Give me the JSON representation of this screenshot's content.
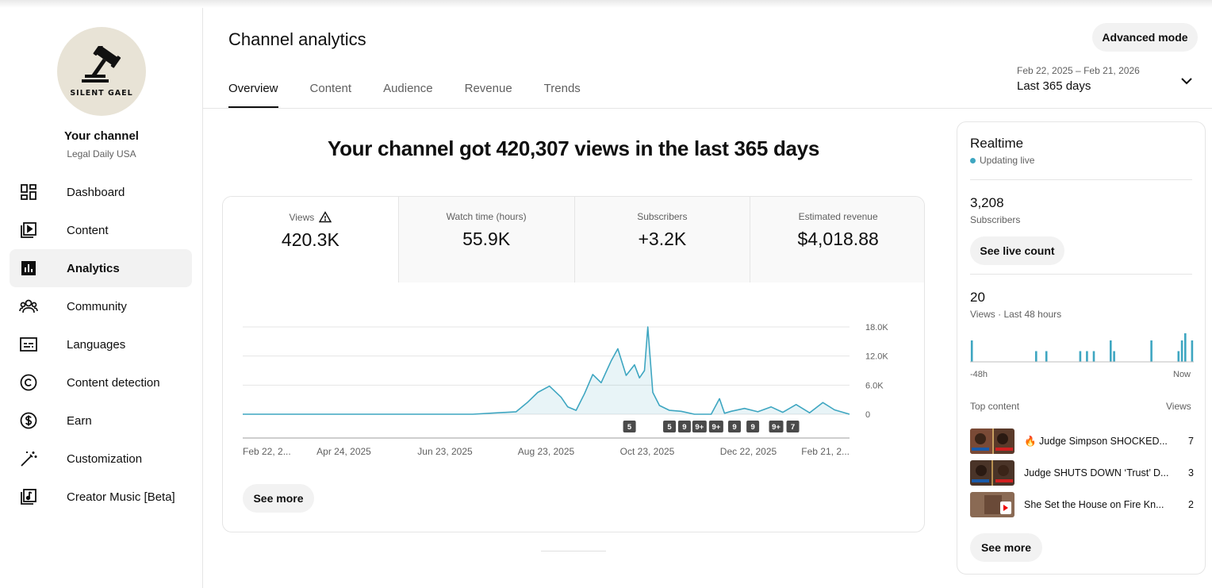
{
  "sidebar": {
    "channel_logo_text": "SILENT GAEL",
    "channel_title": "Your channel",
    "channel_name": "Legal Daily USA",
    "items": [
      {
        "label": "Dashboard",
        "icon": "dashboard-icon"
      },
      {
        "label": "Content",
        "icon": "content-icon"
      },
      {
        "label": "Analytics",
        "icon": "analytics-icon",
        "active": true
      },
      {
        "label": "Community",
        "icon": "community-icon"
      },
      {
        "label": "Languages",
        "icon": "languages-icon"
      },
      {
        "label": "Content detection",
        "icon": "copyright-icon"
      },
      {
        "label": "Earn",
        "icon": "earn-icon"
      },
      {
        "label": "Customization",
        "icon": "magic-wand-icon"
      },
      {
        "label": "Creator Music [Beta]",
        "icon": "music-icon"
      }
    ]
  },
  "header": {
    "title": "Channel analytics",
    "advanced_mode": "Advanced mode",
    "tabs": [
      "Overview",
      "Content",
      "Audience",
      "Revenue",
      "Trends"
    ],
    "active_tab": "Overview",
    "date_range": "Feb 22, 2025 – Feb 21, 2026",
    "date_preset": "Last 365 days"
  },
  "headline": "Your channel got 420,307 views in the last 365 days",
  "metrics": [
    {
      "label": "Views",
      "value": "420.3K",
      "warning": true
    },
    {
      "label": "Watch time (hours)",
      "value": "55.9K"
    },
    {
      "label": "Subscribers",
      "value": "+3.2K"
    },
    {
      "label": "Estimated revenue",
      "value": "$4,018.88"
    }
  ],
  "chart_data": {
    "type": "area",
    "y_ticks": [
      "18.0K",
      "12.0K",
      "6.0K",
      "0"
    ],
    "ylim": [
      0,
      18000
    ],
    "x_ticks": [
      "Feb 22, 2...",
      "Apr 24, 2025",
      "Jun 23, 2025",
      "Aug 23, 2025",
      "Oct 23, 2025",
      "Dec 22, 2025",
      "Feb 21, 2..."
    ],
    "x": [
      "2025-02-22",
      "2025-07-10",
      "2025-08-05",
      "2025-08-12",
      "2025-08-18",
      "2025-08-25",
      "2025-09-01",
      "2025-09-05",
      "2025-09-10",
      "2025-09-15",
      "2025-09-20",
      "2025-09-25",
      "2025-10-01",
      "2025-10-05",
      "2025-10-10",
      "2025-10-15",
      "2025-10-18",
      "2025-10-21",
      "2025-10-23",
      "2025-10-26",
      "2025-10-30",
      "2025-11-05",
      "2025-11-12",
      "2025-11-20",
      "2025-11-30",
      "2025-12-05",
      "2025-12-08",
      "2025-12-12",
      "2025-12-20",
      "2025-12-28",
      "2026-01-05",
      "2026-01-12",
      "2026-01-20",
      "2026-01-28",
      "2026-02-05",
      "2026-02-12",
      "2026-02-21"
    ],
    "values": [
      0,
      0,
      500,
      2500,
      4500,
      5800,
      3500,
      1500,
      800,
      4200,
      8200,
      6500,
      11000,
      13500,
      8000,
      10200,
      7500,
      9000,
      18000,
      4500,
      1800,
      800,
      600,
      0,
      0,
      3200,
      200,
      600,
      1200,
      500,
      1500,
      400,
      2000,
      300,
      2400,
      900,
      0
    ],
    "annotations": [
      {
        "x": "2025-10-12",
        "label": "5"
      },
      {
        "x": "2025-11-05",
        "label": "5"
      },
      {
        "x": "2025-11-14",
        "label": "9"
      },
      {
        "x": "2025-11-23",
        "label": "9+"
      },
      {
        "x": "2025-12-03",
        "label": "9+"
      },
      {
        "x": "2025-12-14",
        "label": "9"
      },
      {
        "x": "2025-12-25",
        "label": "9"
      },
      {
        "x": "2026-01-08",
        "label": "9+"
      },
      {
        "x": "2026-01-18",
        "label": "7"
      }
    ],
    "color": "#3ea6c1"
  },
  "see_more": "See more",
  "realtime": {
    "title": "Realtime",
    "status": "Updating live",
    "subscribers_value": "3,208",
    "subscribers_label": "Subscribers",
    "live_count_button": "See live count",
    "views_value": "20",
    "views_label": "Views · Last 48 hours",
    "bars": [
      3,
      0,
      0,
      0,
      0,
      0,
      0,
      0,
      0,
      0,
      0,
      0,
      0,
      0,
      0,
      0,
      0,
      0,
      0,
      1.5,
      0,
      0,
      1.5,
      0,
      0,
      0,
      0,
      0,
      0,
      0,
      0,
      0,
      1.5,
      0,
      1.5,
      0,
      1.5,
      0,
      0,
      0,
      0,
      3,
      1.5,
      0,
      0,
      0,
      0,
      0,
      0,
      0,
      0,
      0,
      0,
      3,
      0,
      0,
      0,
      0,
      0,
      0,
      0,
      1.5,
      3,
      4,
      0,
      3
    ],
    "axis_start": "-48h",
    "axis_end": "Now",
    "top_content_label": "Top content",
    "views_col_label": "Views",
    "top_content": [
      {
        "title": "🔥 Judge Simpson SHOCKED...",
        "views": "7"
      },
      {
        "title": "Judge SHUTS DOWN ‘Trust’ D...",
        "views": "3"
      },
      {
        "title": "She Set the House on Fire Kn...",
        "views": "2"
      }
    ],
    "see_more": "See more"
  }
}
